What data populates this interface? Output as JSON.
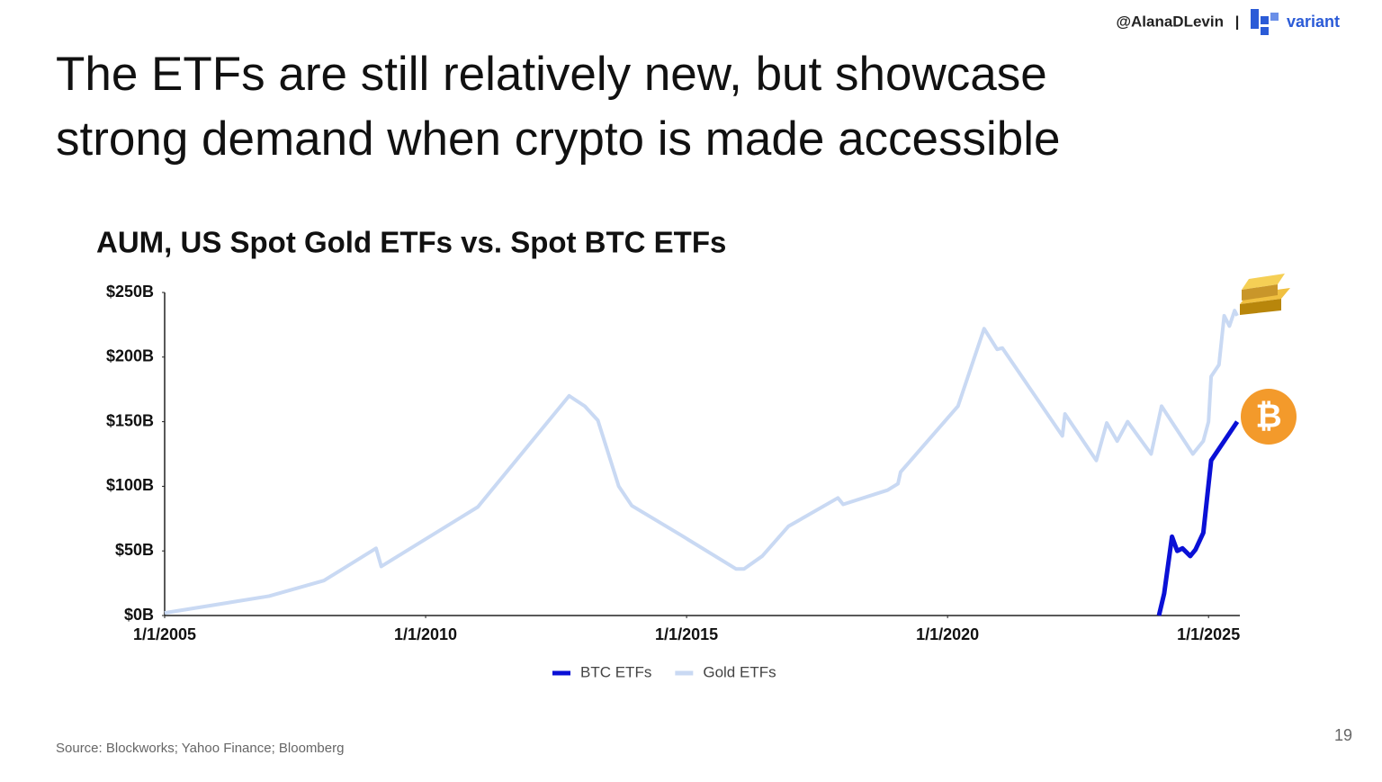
{
  "header": {
    "handle": "@AlanaDLevin",
    "separator": "|",
    "brand": "variant"
  },
  "title_lines": [
    "The ETFs are still relatively new, but showcase",
    "strong demand when crypto is made accessible"
  ],
  "chart_data": {
    "type": "line",
    "title": "AUM, US Spot Gold ETFs vs. Spot BTC ETFs",
    "xlim": [
      2005,
      2025.6
    ],
    "ylim": [
      0,
      250
    ],
    "xticks": [
      {
        "value": 2005,
        "label": "1/1/2005"
      },
      {
        "value": 2010,
        "label": "1/1/2010"
      },
      {
        "value": 2015,
        "label": "1/1/2015"
      },
      {
        "value": 2020,
        "label": "1/1/2020"
      },
      {
        "value": 2025,
        "label": "1/1/2025"
      }
    ],
    "yticks": [
      {
        "value": 0,
        "label": "$0B"
      },
      {
        "value": 50,
        "label": "$50B"
      },
      {
        "value": 100,
        "label": "$100B"
      },
      {
        "value": 150,
        "label": "$150B"
      },
      {
        "value": 200,
        "label": "$200B"
      },
      {
        "value": 250,
        "label": "$250B"
      }
    ],
    "grid": false,
    "series": [
      {
        "name": "BTC ETFs",
        "color": "#0a10d6",
        "x": [
          2024.05,
          2024.15,
          2024.3,
          2024.4,
          2024.5,
          2024.65,
          2024.75,
          2024.9,
          2025.05,
          2025.55
        ],
        "values": [
          0,
          17,
          61,
          50,
          52,
          46,
          51,
          64,
          120,
          150
        ]
      },
      {
        "name": "Gold ETFs",
        "color": "#c9d9f3",
        "x": [
          2005.0,
          2007.0,
          2008.05,
          2009.05,
          2009.15,
          2011.0,
          2012.75,
          2013.05,
          2013.3,
          2013.7,
          2013.95,
          2014.9,
          2015.95,
          2016.1,
          2016.45,
          2016.95,
          2017.9,
          2018.0,
          2018.85,
          2019.05,
          2019.1,
          2020.2,
          2020.7,
          2020.95,
          2021.05,
          2022.2,
          2022.25,
          2022.85,
          2023.05,
          2023.25,
          2023.45,
          2023.9,
          2024.1,
          2024.7,
          2024.9,
          2025.0,
          2025.05,
          2025.2,
          2025.3,
          2025.4,
          2025.5,
          2025.55
        ],
        "values": [
          2,
          15,
          27,
          52,
          38,
          84,
          170,
          162,
          151,
          100,
          85,
          62,
          36,
          36,
          46,
          69,
          91,
          86,
          97,
          102,
          111,
          162,
          222,
          206,
          207,
          139,
          156,
          120,
          149,
          135,
          150,
          125,
          162,
          125,
          135,
          150,
          185,
          194,
          232,
          224,
          236,
          232
        ]
      }
    ]
  },
  "source": "Source: Blockworks; Yahoo Finance; Bloomberg",
  "page_number": "19"
}
